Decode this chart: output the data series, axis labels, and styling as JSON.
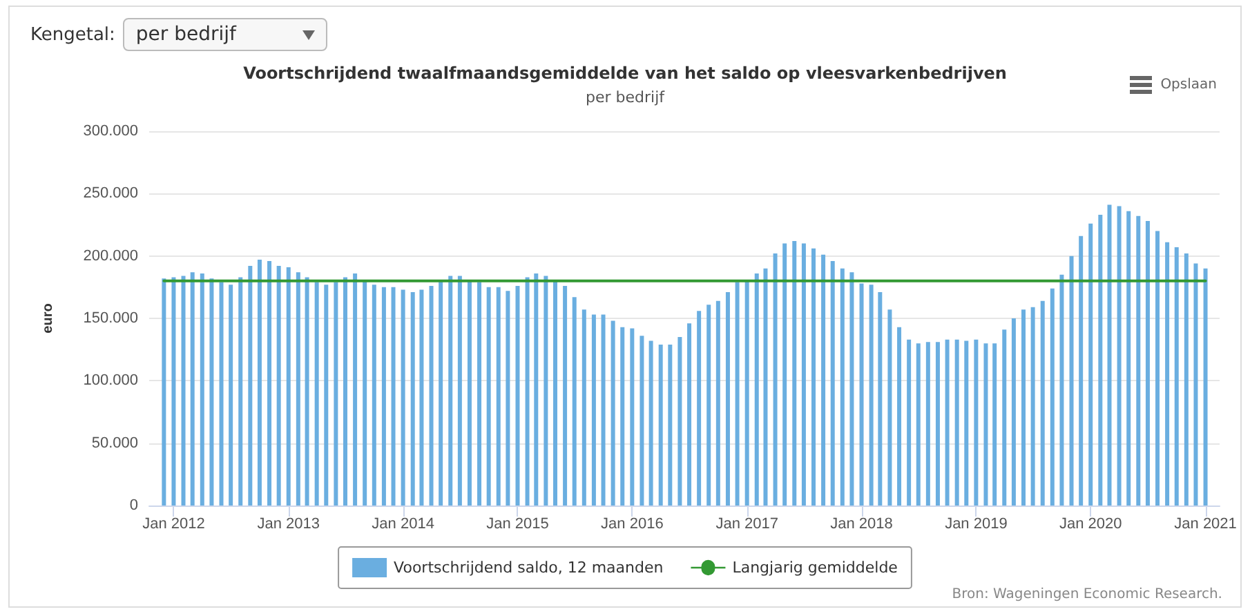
{
  "chart_data": {
    "type": "bar",
    "title": "Voortschrijdend twaalfmaandsgemiddelde van het saldo op vleesvarkenbedrijven",
    "subtitle": "per bedrijf",
    "ylabel": "euro",
    "annotations": [
      "Kengetal:",
      "per bedrijf",
      "Opslaan",
      "Bron: Wageningen Economic Research."
    ],
    "x": [
      "2011-12",
      "2012-01",
      "2012-02",
      "2012-03",
      "2012-04",
      "2012-05",
      "2012-06",
      "2012-07",
      "2012-08",
      "2012-09",
      "2012-10",
      "2012-11",
      "2012-12",
      "2013-01",
      "2013-02",
      "2013-03",
      "2013-04",
      "2013-05",
      "2013-06",
      "2013-07",
      "2013-08",
      "2013-09",
      "2013-10",
      "2013-11",
      "2013-12",
      "2014-01",
      "2014-02",
      "2014-03",
      "2014-04",
      "2014-05",
      "2014-06",
      "2014-07",
      "2014-08",
      "2014-09",
      "2014-10",
      "2014-11",
      "2014-12",
      "2015-01",
      "2015-02",
      "2015-03",
      "2015-04",
      "2015-05",
      "2015-06",
      "2015-07",
      "2015-08",
      "2015-09",
      "2015-10",
      "2015-11",
      "2015-12",
      "2016-01",
      "2016-02",
      "2016-03",
      "2016-04",
      "2016-05",
      "2016-06",
      "2016-07",
      "2016-08",
      "2016-09",
      "2016-10",
      "2016-11",
      "2016-12",
      "2017-01",
      "2017-02",
      "2017-03",
      "2017-04",
      "2017-05",
      "2017-06",
      "2017-07",
      "2017-08",
      "2017-09",
      "2017-10",
      "2017-11",
      "2017-12",
      "2018-01",
      "2018-02",
      "2018-03",
      "2018-04",
      "2018-05",
      "2018-06",
      "2018-07",
      "2018-08",
      "2018-09",
      "2018-10",
      "2018-11",
      "2018-12",
      "2019-01",
      "2019-02",
      "2019-03",
      "2019-04",
      "2019-05",
      "2019-06",
      "2019-07",
      "2019-08",
      "2019-09",
      "2019-10",
      "2019-11",
      "2019-12",
      "2020-01",
      "2020-02",
      "2020-03",
      "2020-04",
      "2020-05",
      "2020-06",
      "2020-07",
      "2020-08",
      "2020-09",
      "2020-10",
      "2020-11",
      "2020-12",
      "2021-01"
    ],
    "series": [
      {
        "name": "Voortschrijdend saldo, 12 maanden",
        "color": "#6aaee0",
        "values": [
          182000,
          183000,
          184000,
          187000,
          186000,
          182000,
          179000,
          177000,
          183000,
          192000,
          197000,
          196000,
          192000,
          191000,
          187000,
          183000,
          179000,
          177000,
          179000,
          183000,
          186000,
          181000,
          177000,
          175000,
          175000,
          173000,
          171000,
          173000,
          176000,
          180000,
          184000,
          184000,
          180000,
          179000,
          175000,
          175000,
          172000,
          176000,
          183000,
          186000,
          184000,
          181000,
          176000,
          167000,
          157000,
          153000,
          153000,
          148000,
          143000,
          142000,
          136000,
          132000,
          129000,
          129000,
          135000,
          146000,
          156000,
          161000,
          164000,
          171000,
          179000,
          180000,
          186000,
          190000,
          202000,
          210000,
          212000,
          210000,
          206000,
          201000,
          196000,
          190000,
          187000,
          178000,
          177000,
          171000,
          157000,
          143000,
          133000,
          130000,
          131000,
          131000,
          133000,
          133000,
          132000,
          133000,
          130000,
          130000,
          141000,
          150000,
          157000,
          159000,
          164000,
          174000,
          185000,
          200000,
          216000,
          226000,
          233000,
          241000,
          240000,
          236000,
          232000,
          228000,
          220000,
          211000,
          207000,
          202000,
          194000,
          190000
        ]
      },
      {
        "name": "Langjarig gemiddelde",
        "type": "line",
        "color": "#339933",
        "marker": "none",
        "line_style": "solid",
        "x": [
          "2011-12",
          "2021-01"
        ],
        "values": [
          180000,
          180000
        ]
      }
    ],
    "xlim": [
      "2011-10-15",
      "2021-02-15"
    ],
    "xticks": [
      {
        "value": "2012-01",
        "label": "Jan 2012"
      },
      {
        "value": "2013-01",
        "label": "Jan 2013"
      },
      {
        "value": "2014-01",
        "label": "Jan 2014"
      },
      {
        "value": "2015-01",
        "label": "Jan 2015"
      },
      {
        "value": "2016-01",
        "label": "Jan 2016"
      },
      {
        "value": "2017-01",
        "label": "Jan 2017"
      },
      {
        "value": "2018-01",
        "label": "Jan 2018"
      },
      {
        "value": "2019-01",
        "label": "Jan 2019"
      },
      {
        "value": "2020-01",
        "label": "Jan 2020"
      },
      {
        "value": "2021-01",
        "label": "Jan 2021"
      }
    ],
    "ylim": [
      0,
      300000
    ],
    "yticks": [
      {
        "value": 0,
        "label": "0"
      },
      {
        "value": 50000,
        "label": "50.000"
      },
      {
        "value": 100000,
        "label": "100.000"
      },
      {
        "value": 150000,
        "label": "150.000"
      },
      {
        "value": 200000,
        "label": "200.000"
      },
      {
        "value": 250000,
        "label": "250.000"
      },
      {
        "value": 300000,
        "label": "300.000"
      }
    ],
    "grid": "y",
    "legend": "bottom"
  }
}
